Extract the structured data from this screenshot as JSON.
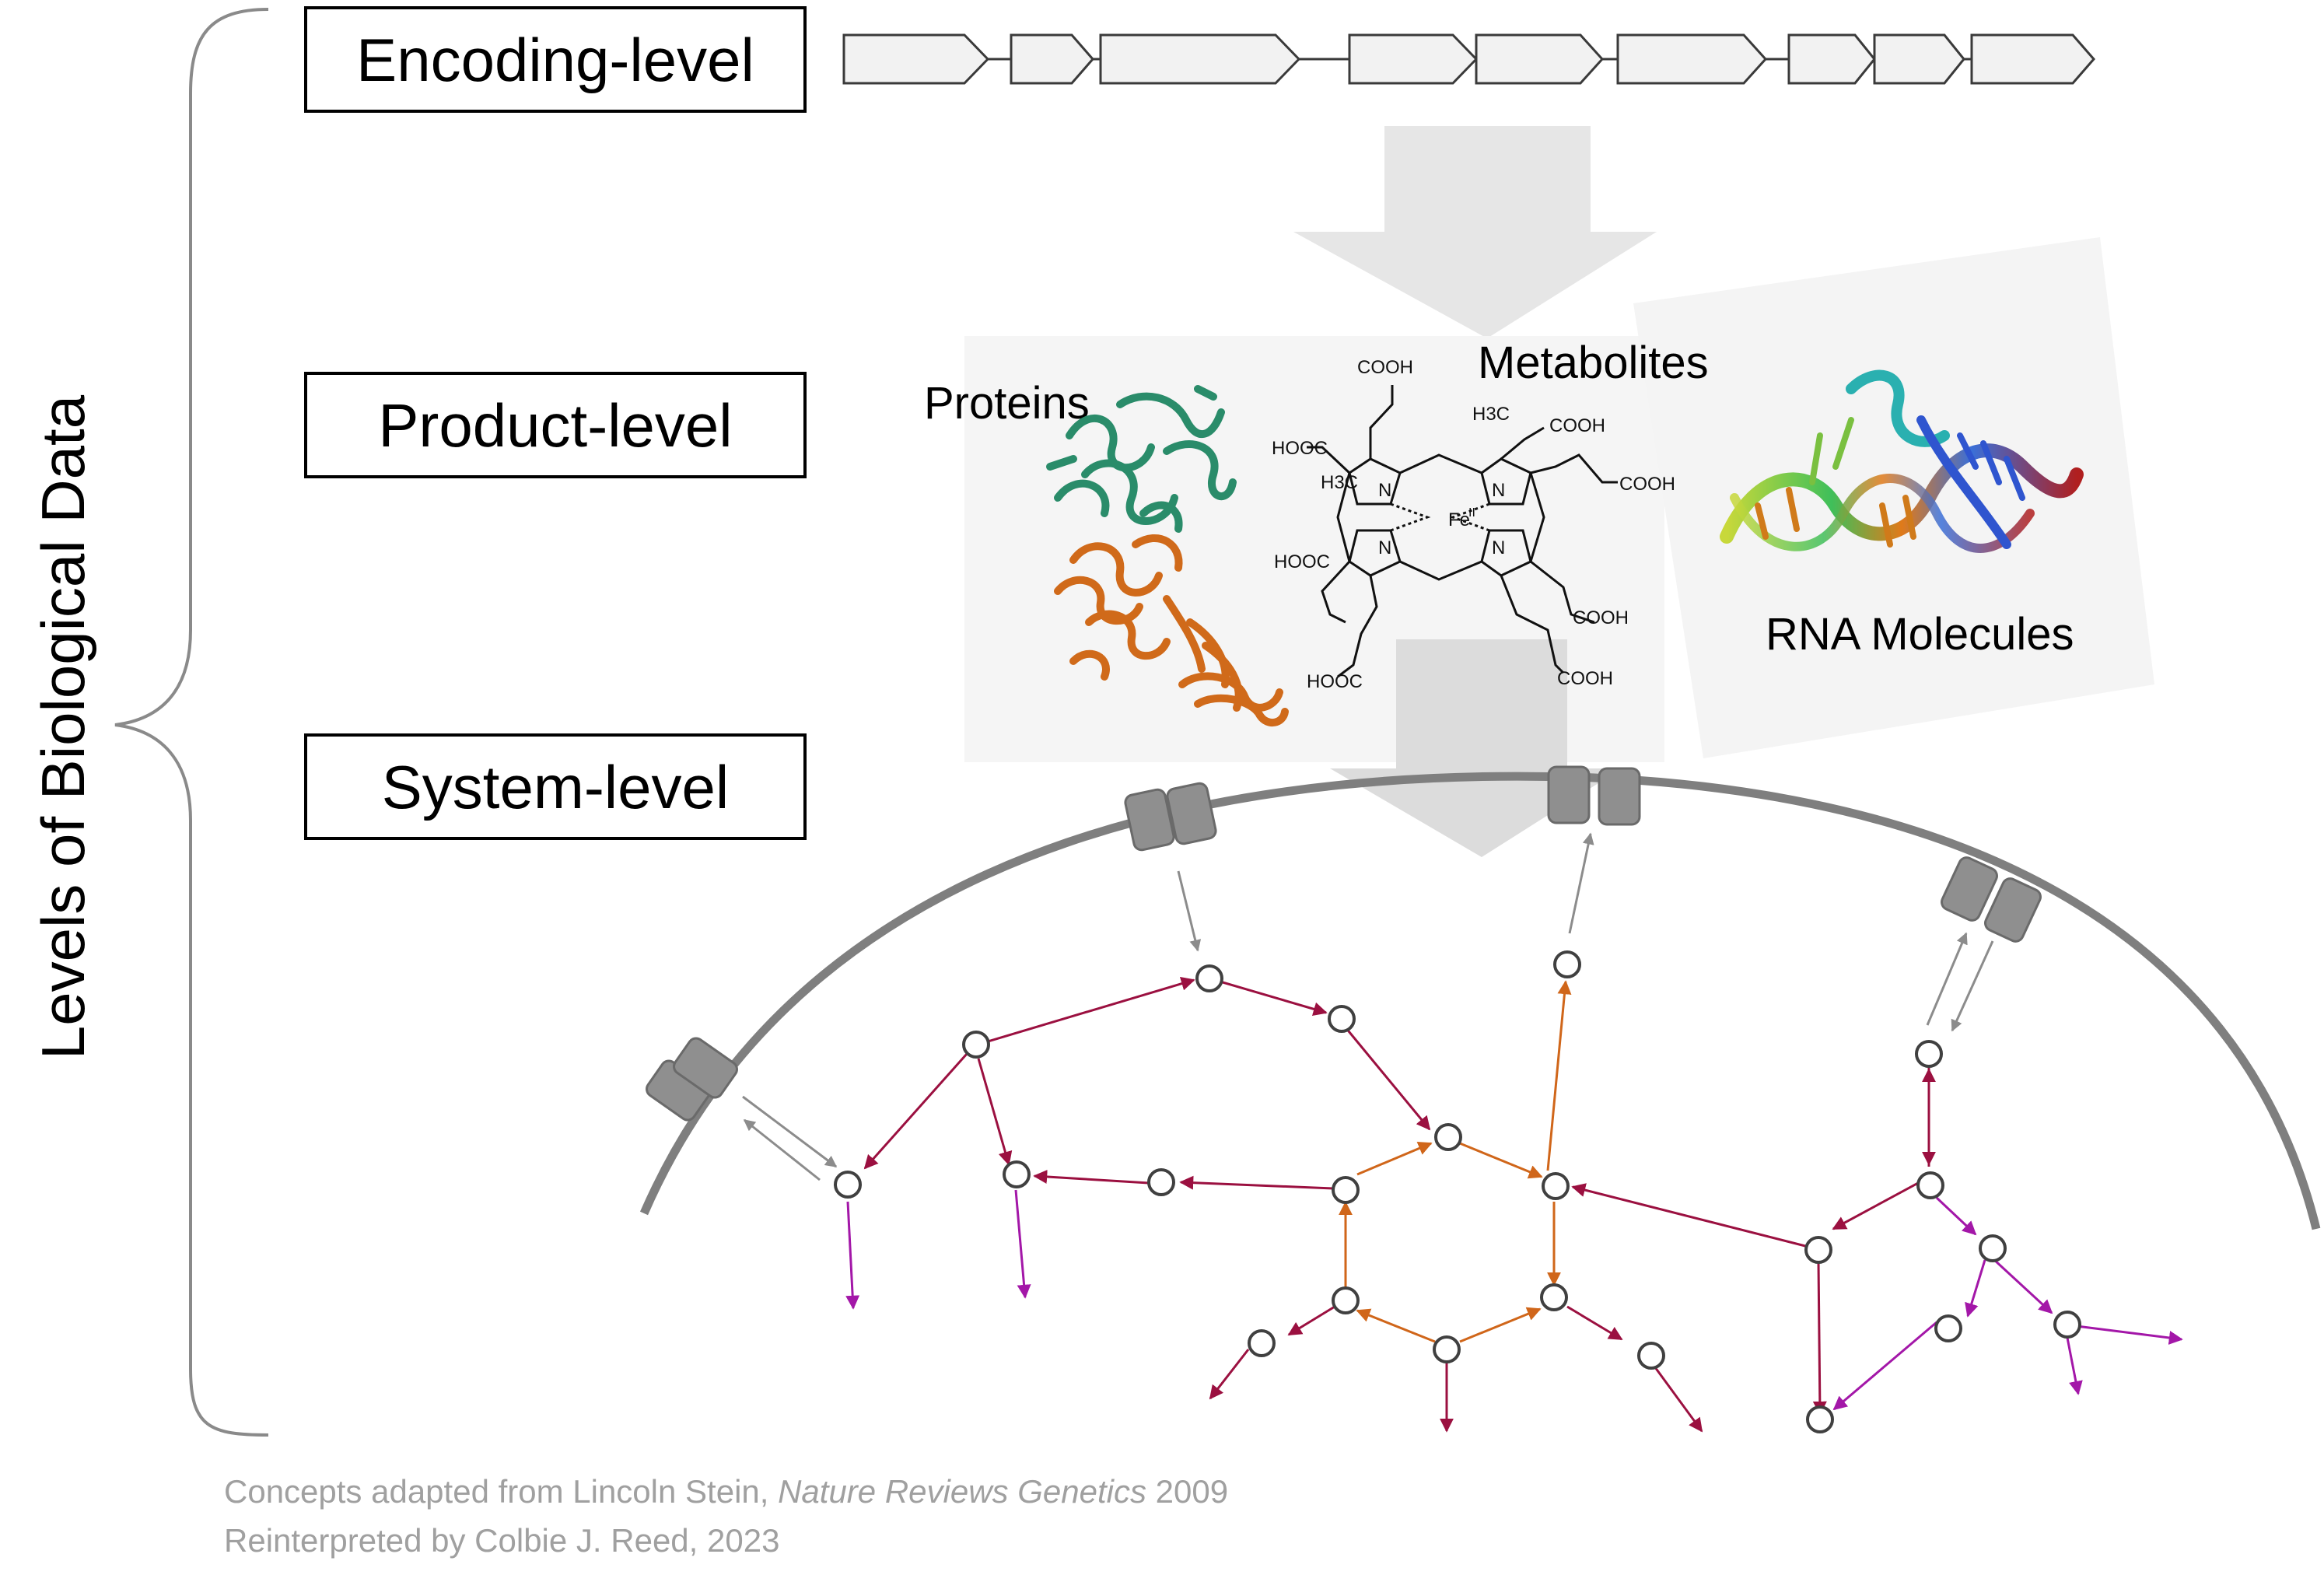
{
  "side_label": "Levels of Biological Data",
  "levels": [
    {
      "label": "Encoding-level"
    },
    {
      "label": "Product-level"
    },
    {
      "label": "System-level"
    }
  ],
  "products": {
    "proteins": "Proteins",
    "metabolites": "Metabolites",
    "rna": "RNA Molecules"
  },
  "heme": {
    "cooh_1": "COOH",
    "cooh_2": "COOH",
    "cooh_3": "COOH",
    "cooh_4": "COOH",
    "cooh_5": "COOH",
    "hooc_1": "HOOC",
    "hooc_2": "HOOC",
    "hooc_3": "HOOC",
    "methyl_1": "H3C",
    "methyl_2": "H3C",
    "n_1": "N",
    "n_2": "N",
    "n_3": "N",
    "n_4": "N",
    "fe": "Fe",
    "fe_charge": "II"
  },
  "credit": {
    "line1_prefix": "Concepts adapted from Lincoln Stein, ",
    "line1_journal": "Nature Reviews Genetics",
    "line1_suffix": " 2009",
    "line2": "Reinterpreted by Colbie J. Reed, 2023"
  },
  "colors": {
    "transport_arrow": "#8c8c8c",
    "pathway_crimson": "#9b1040",
    "pathway_orange": "#d0661a",
    "pathway_magenta": "#a317a8",
    "membrane": "#7f7f7f",
    "protein_green": "#2a8c6a",
    "protein_orange": "#d06a1a"
  }
}
